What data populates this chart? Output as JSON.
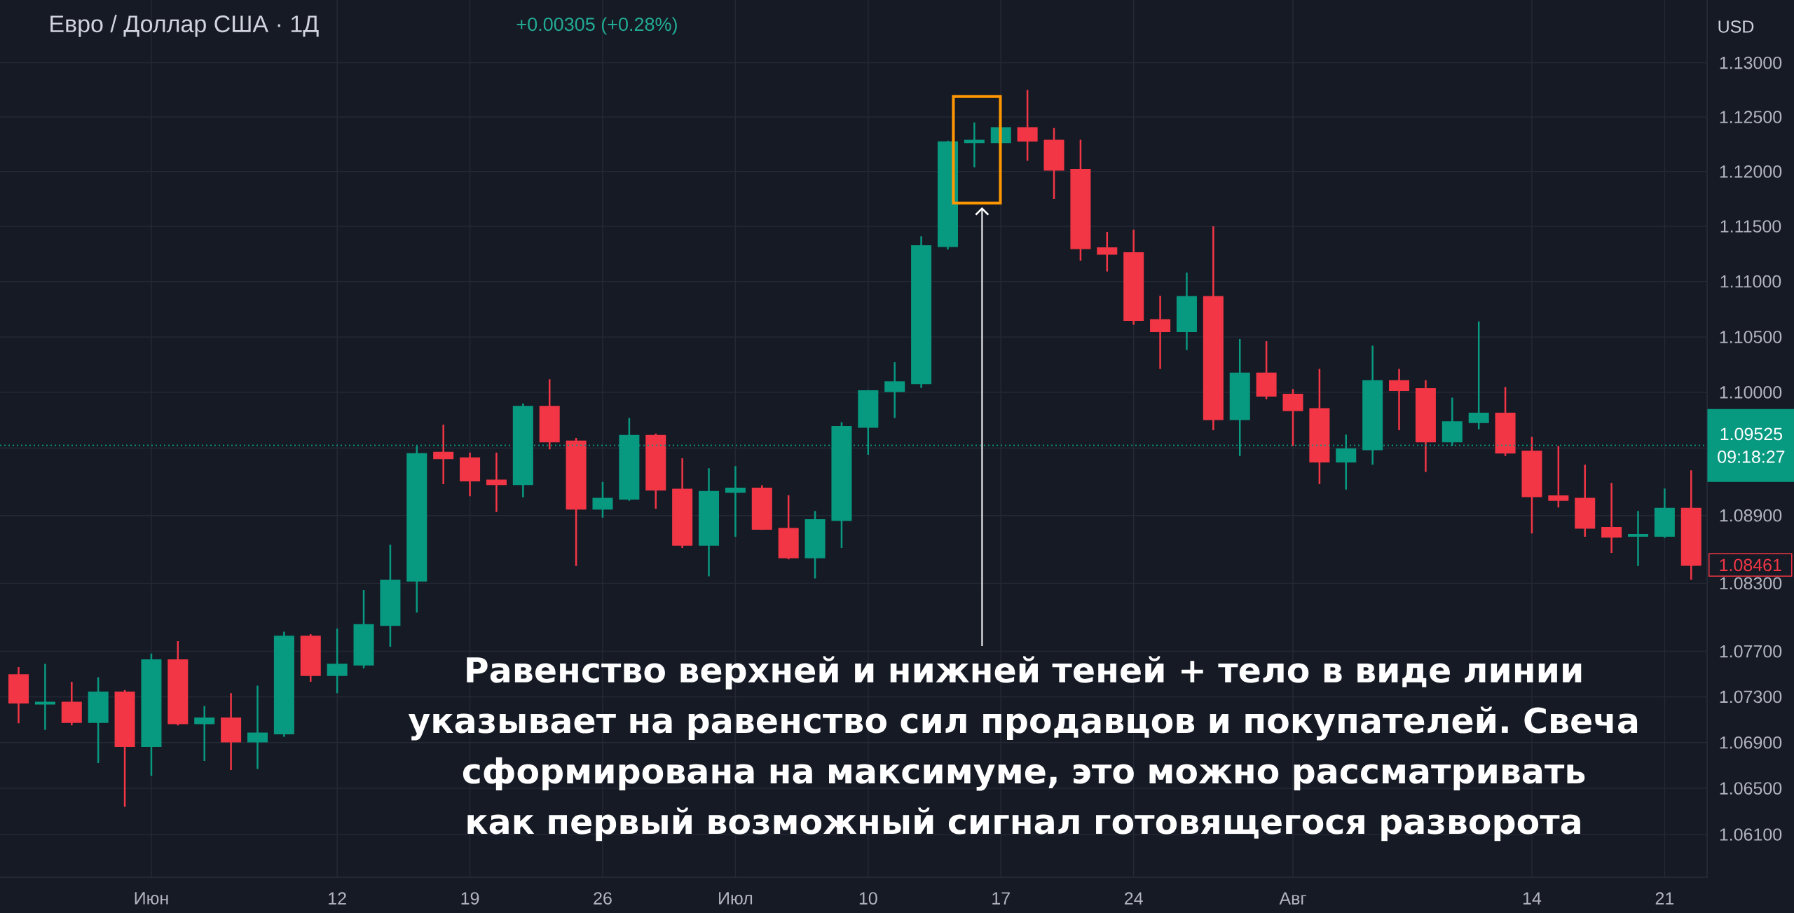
{
  "chart_data": {
    "type": "candlestick",
    "title": "Евро / Доллар США · 1Д",
    "subtitle": "+0.00305 (+0.28%)",
    "categories": [
      null,
      null,
      null,
      null,
      null,
      "Июн",
      null,
      null,
      null,
      null,
      null,
      null,
      "12",
      null,
      null,
      null,
      null,
      "19",
      null,
      null,
      null,
      null,
      "26",
      null,
      null,
      null,
      null,
      "Июл",
      null,
      null,
      null,
      null,
      "10",
      null,
      null,
      null,
      null,
      "17",
      null,
      null,
      null,
      null,
      "24",
      null,
      null,
      null,
      null,
      null,
      "Авг",
      null,
      null,
      null,
      null,
      null,
      null,
      null,
      null,
      "14",
      null,
      null,
      null,
      null,
      "21",
      null
    ],
    "ohlc": [
      [
        1.0749,
        1.0756,
        1.0707,
        1.0725
      ],
      [
        1.0724,
        1.0759,
        1.0701,
        1.0725
      ],
      [
        1.0725,
        1.0743,
        1.0705,
        1.0708
      ],
      [
        1.0708,
        1.0747,
        1.0672,
        1.0734
      ],
      [
        1.0734,
        1.0736,
        1.0634,
        1.0687
      ],
      [
        1.0687,
        1.0768,
        1.0661,
        1.0762
      ],
      [
        1.0762,
        1.0779,
        1.0705,
        1.0707
      ],
      [
        1.0707,
        1.0722,
        1.0674,
        1.0711
      ],
      [
        1.0711,
        1.0733,
        1.0666,
        1.0691
      ],
      [
        1.0691,
        1.074,
        1.0667,
        1.0698
      ],
      [
        1.0698,
        1.0787,
        1.0695,
        1.0783
      ],
      [
        1.0783,
        1.0785,
        1.0743,
        1.0749
      ],
      [
        1.0749,
        1.079,
        1.0733,
        1.0758
      ],
      [
        1.0758,
        1.0824,
        1.0755,
        1.0793
      ],
      [
        1.0793,
        1.0864,
        1.0774,
        1.0832
      ],
      [
        1.0832,
        1.0952,
        1.0804,
        1.0945
      ],
      [
        1.0946,
        1.0971,
        1.0918,
        1.0941
      ],
      [
        1.0941,
        1.0946,
        1.0907,
        1.0921
      ],
      [
        1.0921,
        1.0946,
        1.0893,
        1.0918
      ],
      [
        1.0918,
        1.099,
        1.0906,
        1.0987
      ],
      [
        1.0987,
        1.1012,
        1.0949,
        1.0956
      ],
      [
        1.0956,
        1.0959,
        1.0845,
        1.0896
      ],
      [
        1.0896,
        1.092,
        1.0888,
        1.0905
      ],
      [
        1.0905,
        1.0977,
        1.0903,
        1.0961
      ],
      [
        1.0961,
        1.0963,
        1.0896,
        1.0913
      ],
      [
        1.0913,
        1.0941,
        1.0861,
        1.0864
      ],
      [
        1.0864,
        1.0932,
        1.0836,
        1.0911
      ],
      [
        1.0911,
        1.0934,
        1.0871,
        1.0914
      ],
      [
        1.0914,
        1.0917,
        1.0877,
        1.0878
      ],
      [
        1.0878,
        1.0908,
        1.0851,
        1.0853
      ],
      [
        1.0853,
        1.0894,
        1.0834,
        1.0886
      ],
      [
        1.0886,
        1.0973,
        1.0861,
        1.0969
      ],
      [
        1.0969,
        1.1002,
        1.0944,
        1.1001
      ],
      [
        1.1001,
        1.1027,
        1.0977,
        1.1009
      ],
      [
        1.1008,
        1.1141,
        1.1004,
        1.1132
      ],
      [
        1.1132,
        1.1228,
        1.1129,
        1.1227
      ],
      [
        1.1227,
        1.1245,
        1.1204,
        1.1228
      ],
      [
        1.1227,
        1.124,
        1.1227,
        1.124
      ],
      [
        1.124,
        1.1275,
        1.121,
        1.1228
      ],
      [
        1.1228,
        1.124,
        1.1175,
        1.1202
      ],
      [
        1.1202,
        1.1229,
        1.1119,
        1.113
      ],
      [
        1.113,
        1.1145,
        1.1109,
        1.1125
      ],
      [
        1.1126,
        1.1147,
        1.1061,
        1.1065
      ],
      [
        1.1065,
        1.1087,
        1.1021,
        1.1055
      ],
      [
        1.1055,
        1.1108,
        1.1038,
        1.1086
      ],
      [
        1.1086,
        1.115,
        1.0966,
        1.0976
      ],
      [
        1.0976,
        1.1048,
        1.0943,
        1.1017
      ],
      [
        1.1017,
        1.1046,
        1.0994,
        1.0997
      ],
      [
        1.0998,
        1.1003,
        1.0952,
        1.0984
      ],
      [
        1.0985,
        1.1021,
        1.0918,
        1.0938
      ],
      [
        1.0938,
        1.0962,
        1.0913,
        1.0949
      ],
      [
        1.0949,
        1.1042,
        1.0935,
        1.101
      ],
      [
        1.101,
        1.1021,
        1.0966,
        1.1002
      ],
      [
        1.1003,
        1.1011,
        1.0929,
        1.0956
      ],
      [
        1.0956,
        1.0995,
        1.0952,
        1.0973
      ],
      [
        1.0973,
        1.1064,
        1.0967,
        1.0981
      ],
      [
        1.0981,
        1.1005,
        1.0943,
        1.0946
      ],
      [
        1.0947,
        1.096,
        1.0874,
        1.0907
      ],
      [
        1.0907,
        1.0952,
        1.0897,
        1.0904
      ],
      [
        1.0905,
        1.0935,
        1.0871,
        1.0879
      ],
      [
        1.0879,
        1.0919,
        1.0857,
        1.0871
      ],
      [
        1.0872,
        1.0894,
        1.0845,
        1.0873
      ],
      [
        1.0872,
        1.0914,
        1.087,
        1.0896
      ],
      [
        1.0896,
        1.093,
        1.0833,
        1.08461
      ]
    ],
    "colors": [
      "#f23645",
      "#089981",
      "#f23645",
      "#089981",
      "#f23645",
      "#089981",
      "#f23645",
      "#089981",
      "#f23645",
      "#089981",
      "#089981",
      "#f23645",
      "#089981",
      "#089981",
      "#089981",
      "#089981",
      "#f23645",
      "#f23645",
      "#f23645",
      "#089981",
      "#f23645",
      "#f23645",
      "#089981",
      "#089981",
      "#f23645",
      "#f23645",
      "#089981",
      "#089981",
      "#f23645",
      "#f23645",
      "#089981",
      "#089981",
      "#089981",
      "#089981",
      "#089981",
      "#089981",
      "#089981",
      "#089981",
      "#f23645",
      "#f23645",
      "#f23645",
      "#f23645",
      "#f23645",
      "#f23645",
      "#089981",
      "#f23645",
      "#089981",
      "#f23645",
      "#f23645",
      "#f23645",
      "#089981",
      "#089981",
      "#f23645",
      "#f23645",
      "#089981",
      "#089981",
      "#f23645",
      "#f23645",
      "#f23645",
      "#f23645",
      "#f23645",
      "#089981",
      "#089981",
      "#f23645"
    ],
    "ylim": [
      1.0573,
      1.1358
    ],
    "log": true,
    "yticks": [
      {
        "value": 1.061,
        "label": "1.06100"
      },
      {
        "value": 1.065,
        "label": "1.06500"
      },
      {
        "value": 1.069,
        "label": "1.06900"
      },
      {
        "value": 1.073,
        "label": "1.07300"
      },
      {
        "value": 1.077,
        "label": "1.07700"
      },
      {
        "value": 1.083,
        "label": "1.08300"
      },
      {
        "value": 1.089,
        "label": "1.08900"
      },
      {
        "value": 1.095,
        "label": null
      },
      {
        "value": 1.1,
        "label": "1.10000"
      },
      {
        "value": 1.105,
        "label": "1.10500"
      },
      {
        "value": 1.11,
        "label": "1.11000"
      },
      {
        "value": 1.115,
        "label": "1.11500"
      },
      {
        "value": 1.12,
        "label": "1.12000"
      },
      {
        "value": 1.125,
        "label": "1.12500"
      },
      {
        "value": 1.13,
        "label": "1.13000"
      }
    ],
    "grid": true,
    "ref_lines": [
      {
        "axis": "y",
        "value": 1.09525,
        "label": "1.09525",
        "color": "#089981",
        "line_style": "dotted"
      }
    ],
    "annotations": [
      "Равенство верхней и нижней теней + тело в виде линии указывает на равенство сил продавцов и покупателей. Свеча сформирована на максимуме, это можно рассматривать как первый возможный сигнал готовящегося разворота",
      "09:18:27",
      "1.08461",
      "USD"
    ]
  }
}
